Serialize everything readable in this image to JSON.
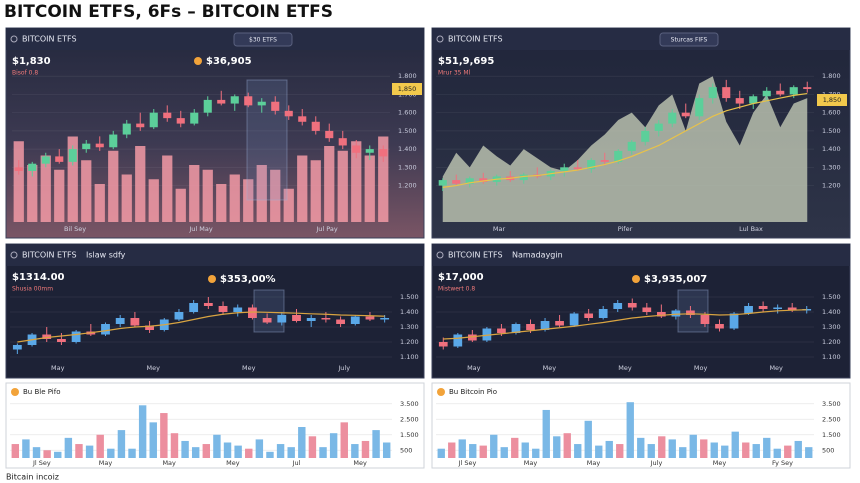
{
  "header": {
    "title": "BITCOIN ETFS, 6Fs – BITCOIN ETFS"
  },
  "footer": {
    "text": "Bitcain incoiz"
  },
  "chart_data": [
    {
      "type": "candlestick",
      "label": "BITCOIN ETFS",
      "badge": "$30 ETFS",
      "price": "$1,830",
      "change": "Bisof 0.8",
      "callout": "$36,905",
      "tag": "1,850",
      "xlabels": [
        "Bil Sey",
        "Jul May",
        "Jul Pay"
      ],
      "up_color": "#5ccf9a",
      "down_color": "#f0707e",
      "grid": true,
      "ylim": [
        1000,
        1900
      ],
      "yticks": [
        {
          "value": 1200,
          "label": "1.200"
        },
        {
          "value": 1300,
          "label": "1.300"
        },
        {
          "value": 1400,
          "label": "1.400"
        },
        {
          "value": 1500,
          "label": "1.500"
        },
        {
          "value": 1600,
          "label": "1.600"
        },
        {
          "value": 1700,
          "label": "1.700"
        },
        {
          "value": 1800,
          "label": "1.800"
        }
      ],
      "candles": [
        [
          1300,
          1340,
          1260,
          1280
        ],
        [
          1280,
          1330,
          1250,
          1320
        ],
        [
          1320,
          1380,
          1300,
          1360
        ],
        [
          1360,
          1400,
          1320,
          1330
        ],
        [
          1330,
          1420,
          1310,
          1400
        ],
        [
          1400,
          1450,
          1380,
          1430
        ],
        [
          1430,
          1470,
          1390,
          1410
        ],
        [
          1410,
          1500,
          1400,
          1480
        ],
        [
          1480,
          1560,
          1460,
          1540
        ],
        [
          1540,
          1600,
          1500,
          1520
        ],
        [
          1520,
          1620,
          1510,
          1600
        ],
        [
          1600,
          1640,
          1550,
          1570
        ],
        [
          1570,
          1610,
          1520,
          1540
        ],
        [
          1540,
          1620,
          1530,
          1600
        ],
        [
          1600,
          1690,
          1580,
          1670
        ],
        [
          1670,
          1720,
          1640,
          1650
        ],
        [
          1650,
          1700,
          1610,
          1690
        ],
        [
          1690,
          1710,
          1630,
          1640
        ],
        [
          1640,
          1680,
          1600,
          1660
        ],
        [
          1660,
          1690,
          1590,
          1610
        ],
        [
          1610,
          1640,
          1560,
          1580
        ],
        [
          1580,
          1620,
          1530,
          1550
        ],
        [
          1550,
          1580,
          1480,
          1500
        ],
        [
          1500,
          1540,
          1440,
          1460
        ],
        [
          1460,
          1500,
          1400,
          1420
        ],
        [
          1420,
          1450,
          1350,
          1380
        ],
        [
          1380,
          1420,
          1340,
          1400
        ],
        [
          1400,
          1420,
          1330,
          1360
        ]
      ],
      "volume": [
        85,
        60,
        70,
        55,
        90,
        65,
        40,
        75,
        50,
        80,
        45,
        70,
        35,
        60,
        55,
        40,
        50,
        45,
        60,
        55,
        35,
        70,
        65,
        80,
        75,
        85,
        70,
        90
      ],
      "volume_lim": [
        0,
        100
      ],
      "volume_color": "#f39aa6"
    },
    {
      "type": "candlestick",
      "label": "BITCOIN ETFS",
      "badge": "Sturcas FIFS",
      "price": "$51,9,695",
      "change": "Mrur 35 Ml",
      "tag": "1,850",
      "xlabels": [
        "Mar",
        "Pifer",
        "Lul Bax"
      ],
      "up_color": "#5ccf9a",
      "down_color": "#f0707e",
      "grid": true,
      "ylim": [
        1000,
        1900
      ],
      "yticks": [
        {
          "value": 1200,
          "label": "1.200"
        },
        {
          "value": 1300,
          "label": "1.300"
        },
        {
          "value": 1400,
          "label": "1.400"
        },
        {
          "value": 1500,
          "label": "1.500"
        },
        {
          "value": 1600,
          "label": "1.600"
        },
        {
          "value": 1700,
          "label": "1.700"
        },
        {
          "value": 1800,
          "label": "1.800"
        }
      ],
      "candles": [
        [
          1200,
          1240,
          1170,
          1230
        ],
        [
          1230,
          1260,
          1200,
          1210
        ],
        [
          1210,
          1250,
          1190,
          1240
        ],
        [
          1240,
          1270,
          1210,
          1220
        ],
        [
          1220,
          1260,
          1200,
          1250
        ],
        [
          1250,
          1280,
          1220,
          1230
        ],
        [
          1230,
          1270,
          1210,
          1260
        ],
        [
          1260,
          1300,
          1240,
          1250
        ],
        [
          1250,
          1290,
          1230,
          1280
        ],
        [
          1280,
          1320,
          1250,
          1300
        ],
        [
          1300,
          1340,
          1280,
          1290
        ],
        [
          1290,
          1350,
          1270,
          1340
        ],
        [
          1340,
          1380,
          1310,
          1330
        ],
        [
          1330,
          1400,
          1320,
          1390
        ],
        [
          1390,
          1450,
          1370,
          1440
        ],
        [
          1440,
          1520,
          1420,
          1500
        ],
        [
          1500,
          1560,
          1470,
          1540
        ],
        [
          1540,
          1620,
          1520,
          1600
        ],
        [
          1600,
          1650,
          1570,
          1580
        ],
        [
          1580,
          1700,
          1560,
          1680
        ],
        [
          1680,
          1760,
          1650,
          1740
        ],
        [
          1740,
          1780,
          1660,
          1680
        ],
        [
          1680,
          1720,
          1620,
          1650
        ],
        [
          1650,
          1700,
          1620,
          1690
        ],
        [
          1690,
          1740,
          1660,
          1720
        ],
        [
          1720,
          1760,
          1690,
          1700
        ],
        [
          1700,
          1750,
          1680,
          1740
        ],
        [
          1740,
          1770,
          1710,
          1730
        ]
      ],
      "area": [
        1250,
        1380,
        1300,
        1420,
        1360,
        1310,
        1400,
        1350,
        1300,
        1280,
        1340,
        1420,
        1480,
        1560,
        1600,
        1520,
        1640,
        1700,
        1500,
        1760,
        1800,
        1550,
        1420,
        1600,
        1700,
        1520,
        1650,
        1680
      ],
      "area_color": "#b9bfae",
      "line": [
        1190,
        1200,
        1215,
        1225,
        1235,
        1240,
        1250,
        1255,
        1265,
        1275,
        1285,
        1300,
        1315,
        1335,
        1360,
        1390,
        1420,
        1460,
        1500,
        1540,
        1580,
        1610,
        1630,
        1650,
        1665,
        1680,
        1695,
        1705
      ],
      "line_color": "#e8c24a"
    },
    {
      "type": "candlestick",
      "label": "BITCOIN ETFS",
      "sublabel": "Islaw sdfy",
      "price": "$1314.00",
      "change": "Shusia 00mm",
      "callout": "$353,00%",
      "xlabels": [
        "May",
        "Mey",
        "Mey",
        "July"
      ],
      "up_color": "#5aa8e8",
      "down_color": "#f0707e",
      "grid": true,
      "ylim": [
        1000,
        1600
      ],
      "yticks": [
        {
          "value": 1100,
          "label": "1.100"
        },
        {
          "value": 1200,
          "label": "1.200"
        },
        {
          "value": 1300,
          "label": "1.300"
        },
        {
          "value": 1400,
          "label": "1.400"
        },
        {
          "value": 1500,
          "label": "1.500"
        }
      ],
      "candles": [
        [
          1150,
          1190,
          1120,
          1180
        ],
        [
          1180,
          1260,
          1170,
          1250
        ],
        [
          1250,
          1300,
          1200,
          1220
        ],
        [
          1220,
          1260,
          1180,
          1200
        ],
        [
          1200,
          1280,
          1190,
          1270
        ],
        [
          1270,
          1320,
          1240,
          1250
        ],
        [
          1250,
          1330,
          1240,
          1320
        ],
        [
          1320,
          1380,
          1300,
          1360
        ],
        [
          1360,
          1400,
          1300,
          1310
        ],
        [
          1310,
          1340,
          1260,
          1280
        ],
        [
          1280,
          1360,
          1270,
          1350
        ],
        [
          1350,
          1420,
          1340,
          1400
        ],
        [
          1400,
          1480,
          1390,
          1460
        ],
        [
          1460,
          1500,
          1420,
          1440
        ],
        [
          1440,
          1470,
          1380,
          1400
        ],
        [
          1400,
          1450,
          1370,
          1430
        ],
        [
          1430,
          1450,
          1350,
          1360
        ],
        [
          1360,
          1390,
          1320,
          1330
        ],
        [
          1330,
          1400,
          1310,
          1380
        ],
        [
          1380,
          1420,
          1330,
          1340
        ],
        [
          1340,
          1380,
          1300,
          1360
        ],
        [
          1360,
          1400,
          1330,
          1350
        ],
        [
          1350,
          1370,
          1300,
          1320
        ],
        [
          1320,
          1380,
          1310,
          1370
        ],
        [
          1370,
          1400,
          1340,
          1350
        ],
        [
          1350,
          1380,
          1330,
          1360
        ]
      ],
      "line": [
        1200,
        1215,
        1230,
        1240,
        1250,
        1262,
        1275,
        1290,
        1300,
        1305,
        1315,
        1330,
        1350,
        1370,
        1385,
        1395,
        1400,
        1398,
        1395,
        1392,
        1388,
        1385,
        1380,
        1378,
        1375,
        1372
      ],
      "line_color": "#d9a441"
    },
    {
      "type": "candlestick",
      "label": "BITCOIN ETFS",
      "sublabel": "Namadaygin",
      "price": "$17,000",
      "change": "Mistwert 0.8",
      "callout": "$3,935,007",
      "xlabels": [
        "May",
        "Mey",
        "Mey",
        "Moy",
        "Mey"
      ],
      "up_color": "#5aa8e8",
      "down_color": "#f0707e",
      "grid": true,
      "ylim": [
        1000,
        1600
      ],
      "yticks": [
        {
          "value": 1100,
          "label": "1.100"
        },
        {
          "value": 1200,
          "label": "1.200"
        },
        {
          "value": 1300,
          "label": "1.300"
        },
        {
          "value": 1400,
          "label": "1.400"
        },
        {
          "value": 1500,
          "label": "1.500"
        }
      ],
      "candles": [
        [
          1200,
          1230,
          1150,
          1170
        ],
        [
          1170,
          1260,
          1160,
          1250
        ],
        [
          1250,
          1280,
          1200,
          1210
        ],
        [
          1210,
          1300,
          1200,
          1290
        ],
        [
          1290,
          1320,
          1240,
          1260
        ],
        [
          1260,
          1330,
          1250,
          1320
        ],
        [
          1320,
          1350,
          1260,
          1280
        ],
        [
          1280,
          1360,
          1270,
          1340
        ],
        [
          1340,
          1380,
          1300,
          1310
        ],
        [
          1310,
          1400,
          1300,
          1390
        ],
        [
          1390,
          1420,
          1340,
          1360
        ],
        [
          1360,
          1440,
          1350,
          1420
        ],
        [
          1420,
          1480,
          1400,
          1460
        ],
        [
          1460,
          1490,
          1410,
          1430
        ],
        [
          1430,
          1460,
          1380,
          1400
        ],
        [
          1400,
          1450,
          1360,
          1370
        ],
        [
          1370,
          1420,
          1350,
          1410
        ],
        [
          1410,
          1440,
          1360,
          1380
        ],
        [
          1380,
          1400,
          1300,
          1320
        ],
        [
          1320,
          1350,
          1270,
          1290
        ],
        [
          1290,
          1400,
          1280,
          1390
        ],
        [
          1390,
          1460,
          1380,
          1440
        ],
        [
          1440,
          1470,
          1400,
          1420
        ],
        [
          1420,
          1450,
          1390,
          1430
        ],
        [
          1430,
          1460,
          1400,
          1410
        ],
        [
          1410,
          1440,
          1390,
          1420
        ]
      ],
      "line": [
        1220,
        1225,
        1235,
        1245,
        1255,
        1265,
        1275,
        1285,
        1295,
        1305,
        1318,
        1330,
        1345,
        1360,
        1370,
        1378,
        1385,
        1388,
        1385,
        1380,
        1382,
        1390,
        1400,
        1408,
        1412,
        1415
      ],
      "line_color": "#d9a441"
    },
    {
      "type": "bar",
      "label": "Bu Ble Pifo",
      "xlabels": [
        "Jl Sey",
        "May",
        "May",
        "Mey",
        "Jul",
        "Mey"
      ],
      "grid": true,
      "ylim": [
        0,
        4000
      ],
      "yticks": [
        500,
        {
          "value": 1500,
          "label": "1.500"
        },
        {
          "value": 2500,
          "label": "2.500"
        },
        {
          "value": 3500,
          "label": "3.500"
        }
      ],
      "series": [
        {
          "color": "#7ab8e6",
          "values": [
            null,
            1200,
            700,
            null,
            400,
            1300,
            null,
            800,
            null,
            600,
            1800,
            600,
            3400,
            2300,
            null,
            null,
            1100,
            700,
            null,
            1500,
            1000,
            800,
            null,
            1200,
            400,
            900,
            700,
            2000,
            null,
            700,
            1600,
            null,
            900,
            null,
            1800,
            1000
          ]
        },
        {
          "color": "#ec8f9f",
          "values": [
            900,
            null,
            null,
            500,
            null,
            null,
            900,
            null,
            1500,
            null,
            null,
            null,
            null,
            null,
            2900,
            1600,
            null,
            null,
            900,
            null,
            null,
            null,
            600,
            null,
            null,
            null,
            null,
            null,
            1400,
            null,
            null,
            2300,
            null,
            1100,
            null,
            null
          ]
        }
      ]
    },
    {
      "type": "bar",
      "label": "Bu Bitcoin Pio",
      "xlabels": [
        "Jl Sey",
        "May",
        "May",
        "July",
        "Mey",
        "Fy Sey"
      ],
      "grid": true,
      "ylim": [
        0,
        4000
      ],
      "yticks": [
        500,
        {
          "value": 1500,
          "label": "1.500"
        },
        {
          "value": 2500,
          "label": "2.500"
        },
        {
          "value": 3500,
          "label": "3.500"
        }
      ],
      "series": [
        {
          "color": "#7ab8e6",
          "values": [
            600,
            null,
            1200,
            900,
            null,
            1500,
            700,
            null,
            1000,
            600,
            3100,
            1400,
            null,
            900,
            2400,
            800,
            1100,
            null,
            3600,
            1300,
            900,
            null,
            1200,
            700,
            1500,
            null,
            1000,
            800,
            1700,
            null,
            900,
            1300,
            600,
            null,
            1100,
            700
          ]
        },
        {
          "color": "#ec8f9f",
          "values": [
            null,
            1000,
            null,
            null,
            800,
            null,
            null,
            1300,
            null,
            null,
            null,
            null,
            1600,
            null,
            null,
            null,
            null,
            900,
            null,
            null,
            null,
            1400,
            null,
            null,
            null,
            1200,
            null,
            null,
            null,
            1000,
            null,
            null,
            null,
            800,
            null,
            null
          ]
        }
      ]
    }
  ]
}
